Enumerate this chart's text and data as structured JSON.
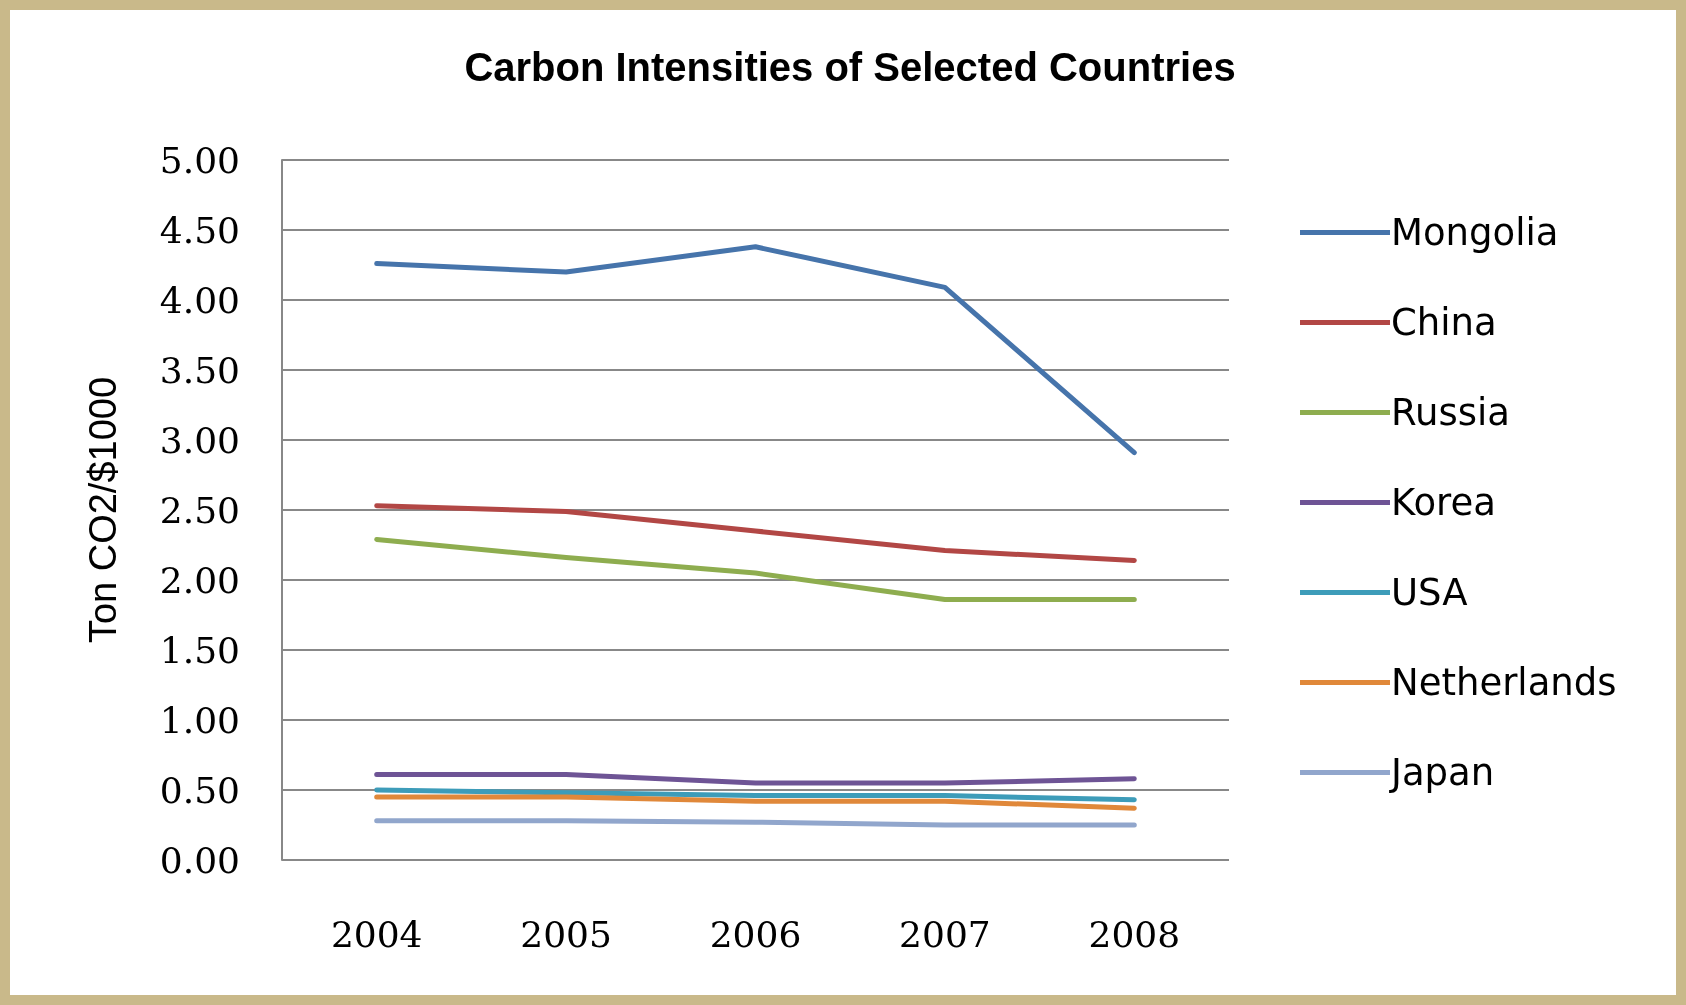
{
  "chart_data": {
    "type": "line",
    "title": "Carbon Intensities of Selected Countries",
    "ylabel": "Ton CO2/$1000",
    "categories": [
      "2004",
      "2005",
      "2006",
      "2007",
      "2008"
    ],
    "series": [
      {
        "name": "Mongolia",
        "color": "#4674ab",
        "values": [
          4.26,
          4.2,
          4.38,
          4.09,
          2.91
        ]
      },
      {
        "name": "China",
        "color": "#b24745",
        "values": [
          2.53,
          2.49,
          2.35,
          2.21,
          2.14
        ]
      },
      {
        "name": "Russia",
        "color": "#8ead4f",
        "values": [
          2.29,
          2.16,
          2.05,
          1.86,
          1.86
        ]
      },
      {
        "name": "Korea",
        "color": "#6e5495",
        "values": [
          0.61,
          0.61,
          0.55,
          0.55,
          0.58
        ]
      },
      {
        "name": "USA",
        "color": "#3d9cb9",
        "values": [
          0.5,
          0.48,
          0.46,
          0.46,
          0.43
        ]
      },
      {
        "name": "Netherlands",
        "color": "#e0883a",
        "values": [
          0.45,
          0.45,
          0.42,
          0.42,
          0.37
        ]
      },
      {
        "name": "Japan",
        "color": "#91a6cc",
        "values": [
          0.28,
          0.28,
          0.27,
          0.25,
          0.25
        ]
      }
    ],
    "ylim": [
      0,
      5
    ],
    "yticks": [
      {
        "value": 0,
        "label": "0.00"
      },
      {
        "value": 0.5,
        "label": "0.50"
      },
      {
        "value": 1,
        "label": "1.00"
      },
      {
        "value": 1.5,
        "label": "1.50"
      },
      {
        "value": 2,
        "label": "2.00"
      },
      {
        "value": 2.5,
        "label": "2.50"
      },
      {
        "value": 3,
        "label": "3.00"
      },
      {
        "value": 3.5,
        "label": "3.50"
      },
      {
        "value": 4,
        "label": "4.00"
      },
      {
        "value": 4.5,
        "label": "4.50"
      },
      {
        "value": 5,
        "label": "5.00"
      }
    ],
    "grid": "y",
    "legend": "right",
    "marker": "none",
    "line_style": "solid"
  }
}
